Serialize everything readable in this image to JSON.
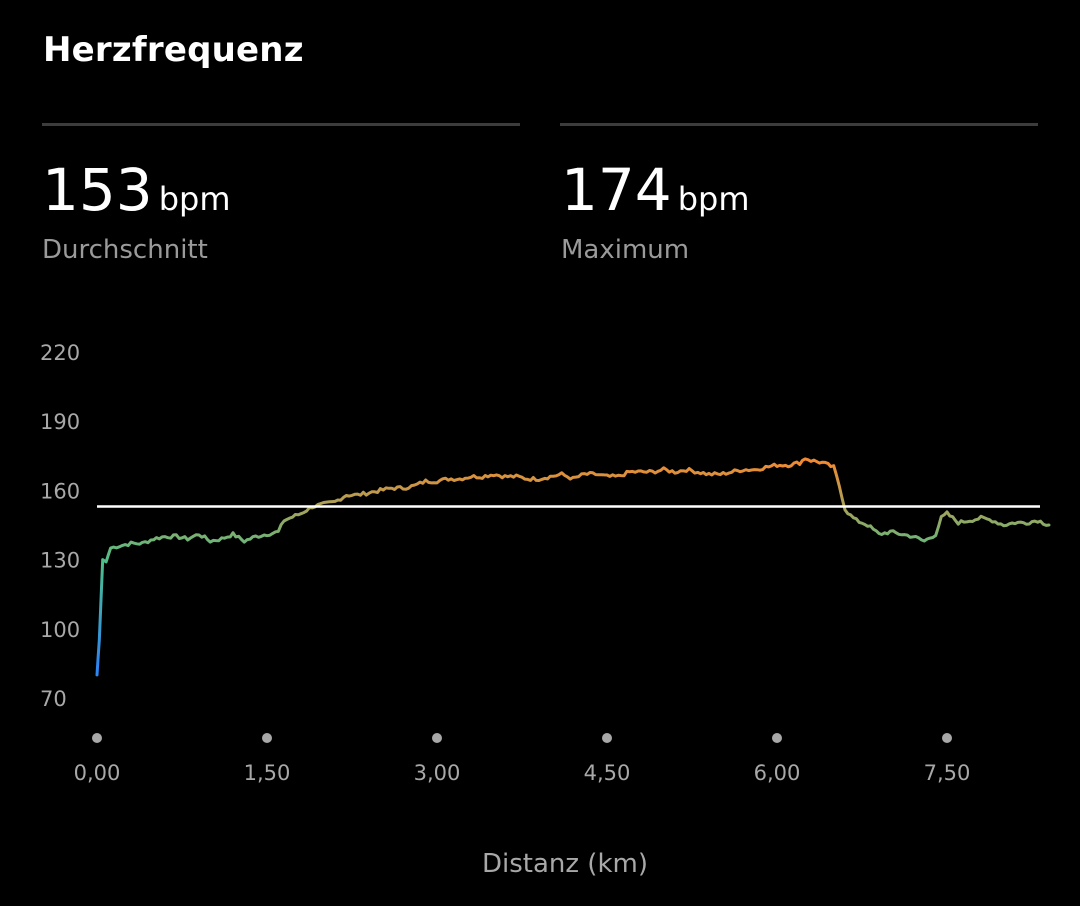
{
  "header": {
    "title": "Herzfrequenz"
  },
  "stats": {
    "average": {
      "value": "153",
      "unit": "bpm",
      "label": "Durchschnitt"
    },
    "maximum": {
      "value": "174",
      "unit": "bpm",
      "label": "Maximum"
    }
  },
  "chart_data": {
    "type": "line",
    "title": "",
    "xlabel": "Distanz (km)",
    "ylabel": "",
    "xlim": [
      0,
      8.4
    ],
    "ylim": [
      70,
      220
    ],
    "x_ticks": [
      0,
      1.5,
      3,
      4.5,
      6,
      7.5
    ],
    "x_tick_labels": [
      "0,00",
      "1,50",
      "3,00",
      "4,50",
      "6,00",
      "7,50"
    ],
    "y_ticks": [
      70,
      100,
      130,
      160,
      190,
      220
    ],
    "y_tick_labels": [
      "70",
      "100",
      "130",
      "160",
      "190",
      "220"
    ],
    "reference_line": {
      "value": 153,
      "color": "#ffffff"
    },
    "grid": false,
    "legend": "none",
    "line_color_scale": {
      "low": "#2f86f0",
      "mid": "#4cbf8a",
      "high": "#ef8a32"
    },
    "series": [
      {
        "x": [
          0.0,
          0.02,
          0.05,
          0.08,
          0.12,
          0.2,
          0.3,
          0.4,
          0.5,
          0.6,
          0.7,
          0.8,
          0.9,
          1.0,
          1.1,
          1.2,
          1.3,
          1.4,
          1.5,
          1.6,
          1.65,
          1.7,
          1.8,
          1.9,
          2.0,
          2.1,
          2.2,
          2.3,
          2.4,
          2.5,
          2.6,
          2.7,
          2.8,
          2.9,
          3.0,
          3.1,
          3.2,
          3.3,
          3.4,
          3.5,
          3.6,
          3.7,
          3.8,
          3.9,
          4.0,
          4.1,
          4.2,
          4.3,
          4.4,
          4.5,
          4.6,
          4.7,
          4.8,
          4.9,
          5.0,
          5.1,
          5.2,
          5.3,
          5.4,
          5.5,
          5.6,
          5.7,
          5.8,
          5.9,
          6.0,
          6.1,
          6.2,
          6.25,
          6.3,
          6.4,
          6.5,
          6.55,
          6.6,
          6.65,
          6.7,
          6.8,
          6.9,
          7.0,
          7.1,
          7.2,
          7.3,
          7.4,
          7.45,
          7.5,
          7.6,
          7.7,
          7.8,
          7.9,
          8.0,
          8.1,
          8.2,
          8.3,
          8.4
        ],
        "y": [
          80,
          95,
          130,
          129,
          135,
          136,
          137,
          137,
          139,
          140,
          140,
          139,
          141,
          138,
          139,
          141,
          138,
          140,
          141,
          142,
          147,
          148,
          150,
          153,
          154,
          155,
          158,
          158,
          159,
          160,
          161,
          161,
          162,
          164,
          164,
          165,
          165,
          166,
          166,
          167,
          166,
          166,
          165,
          165,
          166,
          167,
          165,
          167,
          167,
          166,
          166,
          168,
          168,
          168,
          169,
          168,
          169,
          168,
          167,
          167,
          168,
          169,
          169,
          170,
          171,
          171,
          172,
          174,
          173,
          172,
          170,
          162,
          152,
          149,
          147,
          145,
          141,
          142,
          141,
          140,
          138,
          141,
          148,
          150,
          146,
          147,
          148,
          147,
          145,
          146,
          146,
          147,
          145
        ]
      }
    ]
  }
}
